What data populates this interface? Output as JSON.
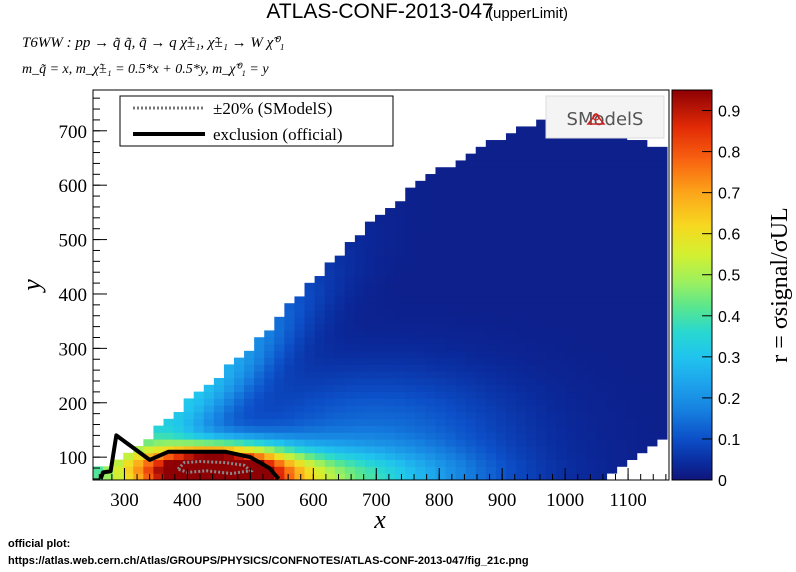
{
  "chart_data": {
    "type": "heatmap",
    "title": "ATLAS-CONF-2013-047",
    "subtitle": "(upperLimit)",
    "process_line": "T6WW : pp → q̃ q̃, q̃ → q χ̃±₁, χ̃±₁ → W χ̃⁰₁",
    "mass_line": "m_q̃ = x, m_χ̃±₁ = 0.5*x + 0.5*y, m_χ̃⁰₁ = y",
    "xlabel": "x",
    "ylabel": "y",
    "zlabel": "r = σsignal/σUL",
    "xlim": [
      250,
      1165
    ],
    "ylim": [
      58,
      775
    ],
    "zlim": [
      0,
      0.95
    ],
    "xticks": [
      300,
      400,
      500,
      600,
      700,
      800,
      900,
      1000,
      1100
    ],
    "yticks": [
      100,
      200,
      300,
      400,
      500,
      600,
      700
    ],
    "zticks": [
      0,
      0.1,
      0.2,
      0.3,
      0.4,
      0.5,
      0.6,
      0.7,
      0.8,
      0.9
    ],
    "grid": false,
    "legend_position": "top-left",
    "legend": [
      {
        "label": "±20% (SModelS)",
        "style": "dotted",
        "color": "#777777"
      },
      {
        "label": "exclusion (official)",
        "style": "solid",
        "color": "#000000"
      }
    ],
    "logo_text": "SModelS",
    "exclusion_official": [
      [
        262,
        60
      ],
      [
        266,
        72
      ],
      [
        278,
        74
      ],
      [
        287,
        140
      ],
      [
        340,
        95
      ],
      [
        370,
        110
      ],
      [
        410,
        110
      ],
      [
        460,
        110
      ],
      [
        500,
        100
      ],
      [
        530,
        80
      ],
      [
        545,
        60
      ]
    ],
    "smodels_contour_minus20": [
      [
        385,
        78
      ],
      [
        395,
        90
      ],
      [
        420,
        92
      ],
      [
        460,
        90
      ],
      [
        490,
        85
      ],
      [
        500,
        75
      ],
      [
        470,
        70
      ],
      [
        430,
        75
      ],
      [
        400,
        72
      ],
      [
        385,
        78
      ]
    ],
    "cell_grid": {
      "x_start": 250,
      "x_step": 16,
      "x_count": 57,
      "y_start": 58,
      "y_step": 12.5,
      "upper_edge": [
        [
          270,
          82
        ],
        [
          300,
          100
        ],
        [
          350,
          150
        ],
        [
          400,
          200
        ],
        [
          450,
          250
        ],
        [
          500,
          300
        ],
        [
          560,
          375
        ],
        [
          620,
          445
        ],
        [
          700,
          540
        ],
        [
          770,
          605
        ],
        [
          850,
          660
        ],
        [
          930,
          705
        ],
        [
          1000,
          735
        ],
        [
          1030,
          740
        ],
        [
          1060,
          720
        ],
        [
          1100,
          690
        ],
        [
          1165,
          660
        ]
      ],
      "lower_right_edge": [
        [
          1040,
          58
        ],
        [
          1080,
          70
        ],
        [
          1120,
          100
        ],
        [
          1165,
          140
        ]
      ]
    },
    "colormap": [
      [
        0.0,
        "#10157a"
      ],
      [
        0.04,
        "#0a2a9c"
      ],
      [
        0.1,
        "#0c4fc8"
      ],
      [
        0.17,
        "#1681e0"
      ],
      [
        0.24,
        "#1ea6ec"
      ],
      [
        0.3,
        "#20c4ee"
      ],
      [
        0.36,
        "#28d8d0"
      ],
      [
        0.42,
        "#58e690"
      ],
      [
        0.48,
        "#9af060"
      ],
      [
        0.55,
        "#d4f030"
      ],
      [
        0.62,
        "#f7d820"
      ],
      [
        0.7,
        "#fca51a"
      ],
      [
        0.78,
        "#f86210"
      ],
      [
        0.86,
        "#e22a06"
      ],
      [
        0.95,
        "#8d0004"
      ]
    ]
  },
  "footnote": {
    "label": "official plot:",
    "url": "https://atlas.web.cern.ch/Atlas/GROUPS/PHYSICS/CONFNOTES/ATLAS-CONF-2013-047/fig_21c.png"
  }
}
